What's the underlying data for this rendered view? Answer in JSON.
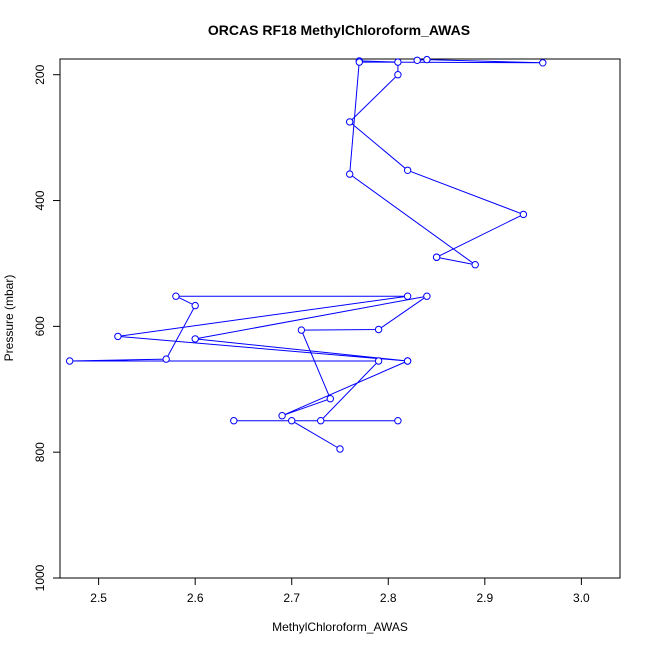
{
  "chart_data": {
    "type": "line",
    "title": "ORCAS RF18 MethylChloroform_AWAS",
    "xlabel": "MethylChloroform_AWAS",
    "ylabel": "Pressure (mbar)",
    "xlim": [
      2.46,
      3.04
    ],
    "ylim": [
      1000,
      175
    ],
    "y_reversed": true,
    "grid": false,
    "legend": "none",
    "x_ticks": [
      2.5,
      2.6,
      2.7,
      2.8,
      2.9,
      3.0
    ],
    "x_tick_labels": [
      "2.5",
      "2.6",
      "2.7",
      "2.8",
      "2.9",
      "3.0"
    ],
    "y_ticks": [
      200,
      400,
      600,
      800,
      1000
    ],
    "y_tick_labels": [
      "200",
      "400",
      "600",
      "800",
      "1000"
    ],
    "line_color": "#0000ff",
    "series": [
      {
        "points": [
          {
            "x": 2.75,
            "y": 795
          },
          {
            "x": 2.7,
            "y": 750
          },
          {
            "x": 2.81,
            "y": 750
          },
          {
            "x": 2.64,
            "y": 750
          },
          {
            "x": 2.73,
            "y": 750
          },
          {
            "x": 2.79,
            "y": 655
          },
          {
            "x": 2.47,
            "y": 655
          },
          {
            "x": 2.57,
            "y": 652
          },
          {
            "x": 2.6,
            "y": 567
          },
          {
            "x": 2.58,
            "y": 552
          },
          {
            "x": 2.82,
            "y": 552
          },
          {
            "x": 2.52,
            "y": 616
          },
          {
            "x": 2.82,
            "y": 655
          },
          {
            "x": 2.6,
            "y": 620
          },
          {
            "x": 2.84,
            "y": 552
          },
          {
            "x": 2.79,
            "y": 605
          },
          {
            "x": 2.71,
            "y": 606
          },
          {
            "x": 2.74,
            "y": 715
          },
          {
            "x": 2.69,
            "y": 742
          },
          {
            "x": 2.82,
            "y": 655
          }
        ]
      },
      {
        "points": [
          {
            "x": 2.85,
            "y": 490
          },
          {
            "x": 2.89,
            "y": 502
          },
          {
            "x": 2.76,
            "y": 358
          },
          {
            "x": 2.77,
            "y": 178
          },
          {
            "x": 2.81,
            "y": 180
          },
          {
            "x": 2.81,
            "y": 200
          },
          {
            "x": 2.76,
            "y": 275
          },
          {
            "x": 2.82,
            "y": 352
          },
          {
            "x": 2.94,
            "y": 422
          },
          {
            "x": 2.85,
            "y": 490
          }
        ]
      },
      {
        "points": [
          {
            "x": 2.83,
            "y": 177
          },
          {
            "x": 2.84,
            "y": 176
          },
          {
            "x": 2.96,
            "y": 181
          },
          {
            "x": 2.77,
            "y": 180
          }
        ]
      }
    ]
  }
}
